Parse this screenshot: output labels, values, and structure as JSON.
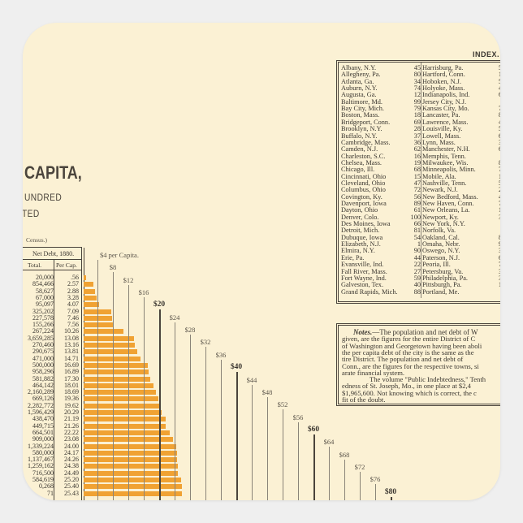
{
  "heading": {
    "title_fragment": "CAPITA,",
    "subtitle_line1": "UNDRED",
    "subtitle_line2": "TED",
    "census_note": "Census.)"
  },
  "table": {
    "header": "Net Debt, 1880.",
    "columns": [
      "Total.",
      "Per Cap."
    ],
    "rows": [
      [
        "20,000",
        ".56"
      ],
      [
        "854,466",
        "2.57"
      ],
      [
        "58,627",
        "2.88"
      ],
      [
        "67,000",
        "3.28"
      ],
      [
        "95,097",
        "4.07"
      ],
      [
        "325,202",
        "7.09"
      ],
      [
        "227,578",
        "7.46"
      ],
      [
        "155,266",
        "7.56"
      ],
      [
        "267,224",
        "10.26"
      ],
      [
        "3,659,285",
        "13.08"
      ],
      [
        "270,460",
        "13.16"
      ],
      [
        "290,675",
        "13.81"
      ],
      [
        "471,000",
        "14.71"
      ],
      [
        "500,000",
        "16.69"
      ],
      [
        "958,296",
        "16.89"
      ],
      [
        "581,882",
        "17.30"
      ],
      [
        "464,142",
        "18.01"
      ],
      [
        "2,160,289",
        "18.69"
      ],
      [
        "669,126",
        "19.36"
      ],
      [
        "2,282,772",
        "19.62"
      ],
      [
        "1,596,429",
        "20.29"
      ],
      [
        "438,470",
        "21.19"
      ],
      [
        "449,715",
        "21.26"
      ],
      [
        "664,501",
        "22.22"
      ],
      [
        "909,000",
        "23.08"
      ],
      [
        "1,339,224",
        "24.00"
      ],
      [
        "580,000",
        "24.17"
      ],
      [
        "1,137,467",
        "24.26"
      ],
      [
        "1,259,162",
        "24.38"
      ],
      [
        "716,500",
        "24.49"
      ],
      [
        "584,619",
        "25.20"
      ],
      [
        "0,268",
        "25.40"
      ],
      [
        "71",
        "25.43"
      ]
    ]
  },
  "chart_data": {
    "type": "bar",
    "orientation": "horizontal",
    "values": [
      0.56,
      2.57,
      2.88,
      3.28,
      4.07,
      7.09,
      7.46,
      7.56,
      10.26,
      13.08,
      13.16,
      13.81,
      14.71,
      16.69,
      16.89,
      17.3,
      18.01,
      18.69,
      19.36,
      19.62,
      20.29,
      21.19,
      21.26,
      22.22,
      23.08,
      24.0,
      24.17,
      24.26,
      24.38,
      24.49,
      25.2,
      25.4,
      25.43
    ],
    "bar_color": "#f0a233",
    "scale_ticks": [
      4,
      8,
      12,
      16,
      20,
      24,
      28,
      32,
      36,
      40,
      44,
      48,
      52,
      56,
      60,
      64,
      68,
      72,
      76,
      80
    ],
    "tick_labels": [
      "$4 per Capita.",
      "$8",
      "$12",
      "$16",
      "$20",
      "$24",
      "$28",
      "$32",
      "$36",
      "$40",
      "$44",
      "$48",
      "$52",
      "$56",
      "$60",
      "$64",
      "$68",
      "$72",
      "$76",
      "$80"
    ],
    "bold_ticks": [
      20,
      40,
      60,
      80
    ],
    "xlim": [
      0,
      80
    ]
  },
  "index": {
    "title": "INDEX.",
    "rows": [
      [
        "Albany, N.Y.",
        "45",
        "Harrisburg, Pa.",
        "5"
      ],
      [
        "Allegheny, Pa.",
        "80",
        "Hartford, Conn.",
        "1"
      ],
      [
        "Atlanta, Ga.",
        "34",
        "Hoboken, N.J.",
        "5"
      ],
      [
        "Auburn, N.Y.",
        "74",
        "Holyoke, Mass.",
        "4"
      ],
      [
        "Augusta, Ga.",
        "12",
        "Indianapolis, Ind.",
        "6"
      ],
      [
        "Baltimore, Md.",
        "99",
        "Jersey City, N.J.",
        ""
      ],
      [
        "Bay City, Mich.",
        "79",
        "Kansas City, Mo.",
        "7"
      ],
      [
        "Boston, Mass.",
        "18",
        "Lancaster, Pa.",
        "8"
      ],
      [
        "Bridgeport, Conn.",
        "69",
        "Lawrence, Mass.",
        "4"
      ],
      [
        "Brooklyn, N.Y.",
        "28",
        "Louisville, Ky.",
        "5"
      ],
      [
        "Buffalo, N.Y.",
        "37",
        "Lowell, Mass.",
        "6"
      ],
      [
        "Cambridge, Mass.",
        "36",
        "Lynn, Mass.",
        "3"
      ],
      [
        "Camden, N.J.",
        "62",
        "Manchester, N.H.",
        "6"
      ],
      [
        "Charleston, S.C.",
        "16",
        "Memphis, Tenn.",
        ""
      ],
      [
        "Chelsea, Mass.",
        "19",
        "Milwaukee, Wis.",
        "8"
      ],
      [
        "Chicago, Ill.",
        "68",
        "Minneapolis, Minn.",
        "7"
      ],
      [
        "Cincinnati, Ohio",
        "15",
        "Mobile, Ala.",
        "1"
      ],
      [
        "Cleveland, Ohio",
        "47",
        "Nashville, Tenn.",
        "5"
      ],
      [
        "Columbus, Ohio",
        "72",
        "Newark, N.J.",
        "2"
      ],
      [
        "Covington, Ky.",
        "56",
        "New Bedford, Mass.",
        "4"
      ],
      [
        "Davenport, Iowa",
        "89",
        "New Haven, Conn.",
        "7"
      ],
      [
        "Dayton, Ohio",
        "61",
        "New Orleans, La.",
        "1"
      ],
      [
        "Denver, Colo.",
        "100",
        "Newport, Ky.",
        "3"
      ],
      [
        "Des Moines, Iowa",
        "66",
        "New York, N.Y.",
        ""
      ],
      [
        "Detroit, Mich.",
        "81",
        "Norfolk, Va.",
        ""
      ],
      [
        "Dubuque, Iowa",
        "54",
        "Oakland, Cal.",
        "8"
      ],
      [
        "Elizabeth, N.J.",
        "1",
        "Omaha, Nebr.",
        "9"
      ],
      [
        "Elmira, N.Y.",
        "90",
        "Oswego, N.Y.",
        "3"
      ],
      [
        "Erie, Pa.",
        "44",
        "Paterson, N.J.",
        "6"
      ],
      [
        "Evansville, Ind.",
        "22",
        "Peoria, Ill.",
        "7"
      ],
      [
        "Fall River, Mass.",
        "27",
        "Petersburg, Va.",
        "3"
      ],
      [
        "Fort Wayne, Ind.",
        "59",
        "Philadelphia, Pa.",
        "3"
      ],
      [
        "Galveston, Tex.",
        "40",
        "Pittsburgh, Pa.",
        "1"
      ],
      [
        "Grand Rapids, Mich.",
        "88",
        "Portland, Me.",
        ""
      ]
    ]
  },
  "notes": {
    "heading": "Notes.",
    "lines": [
      "—The population and net debt of W",
      "given, are the figures for the entire District of C",
      "of Washington and Georgetown having been aboli",
      "the per capita debt of the city is the same as the",
      "tire District.  The population and net debt of",
      "Conn., are the figures for the respective towns, si",
      "arate financial system.",
      "The volume \"Public Indebtedness,\" Tenth",
      "edness of St. Joseph, Mo., in one place at $2,4",
      "$1,965,600.  Not knowing which is correct, the c",
      "fit of the doubt."
    ]
  }
}
